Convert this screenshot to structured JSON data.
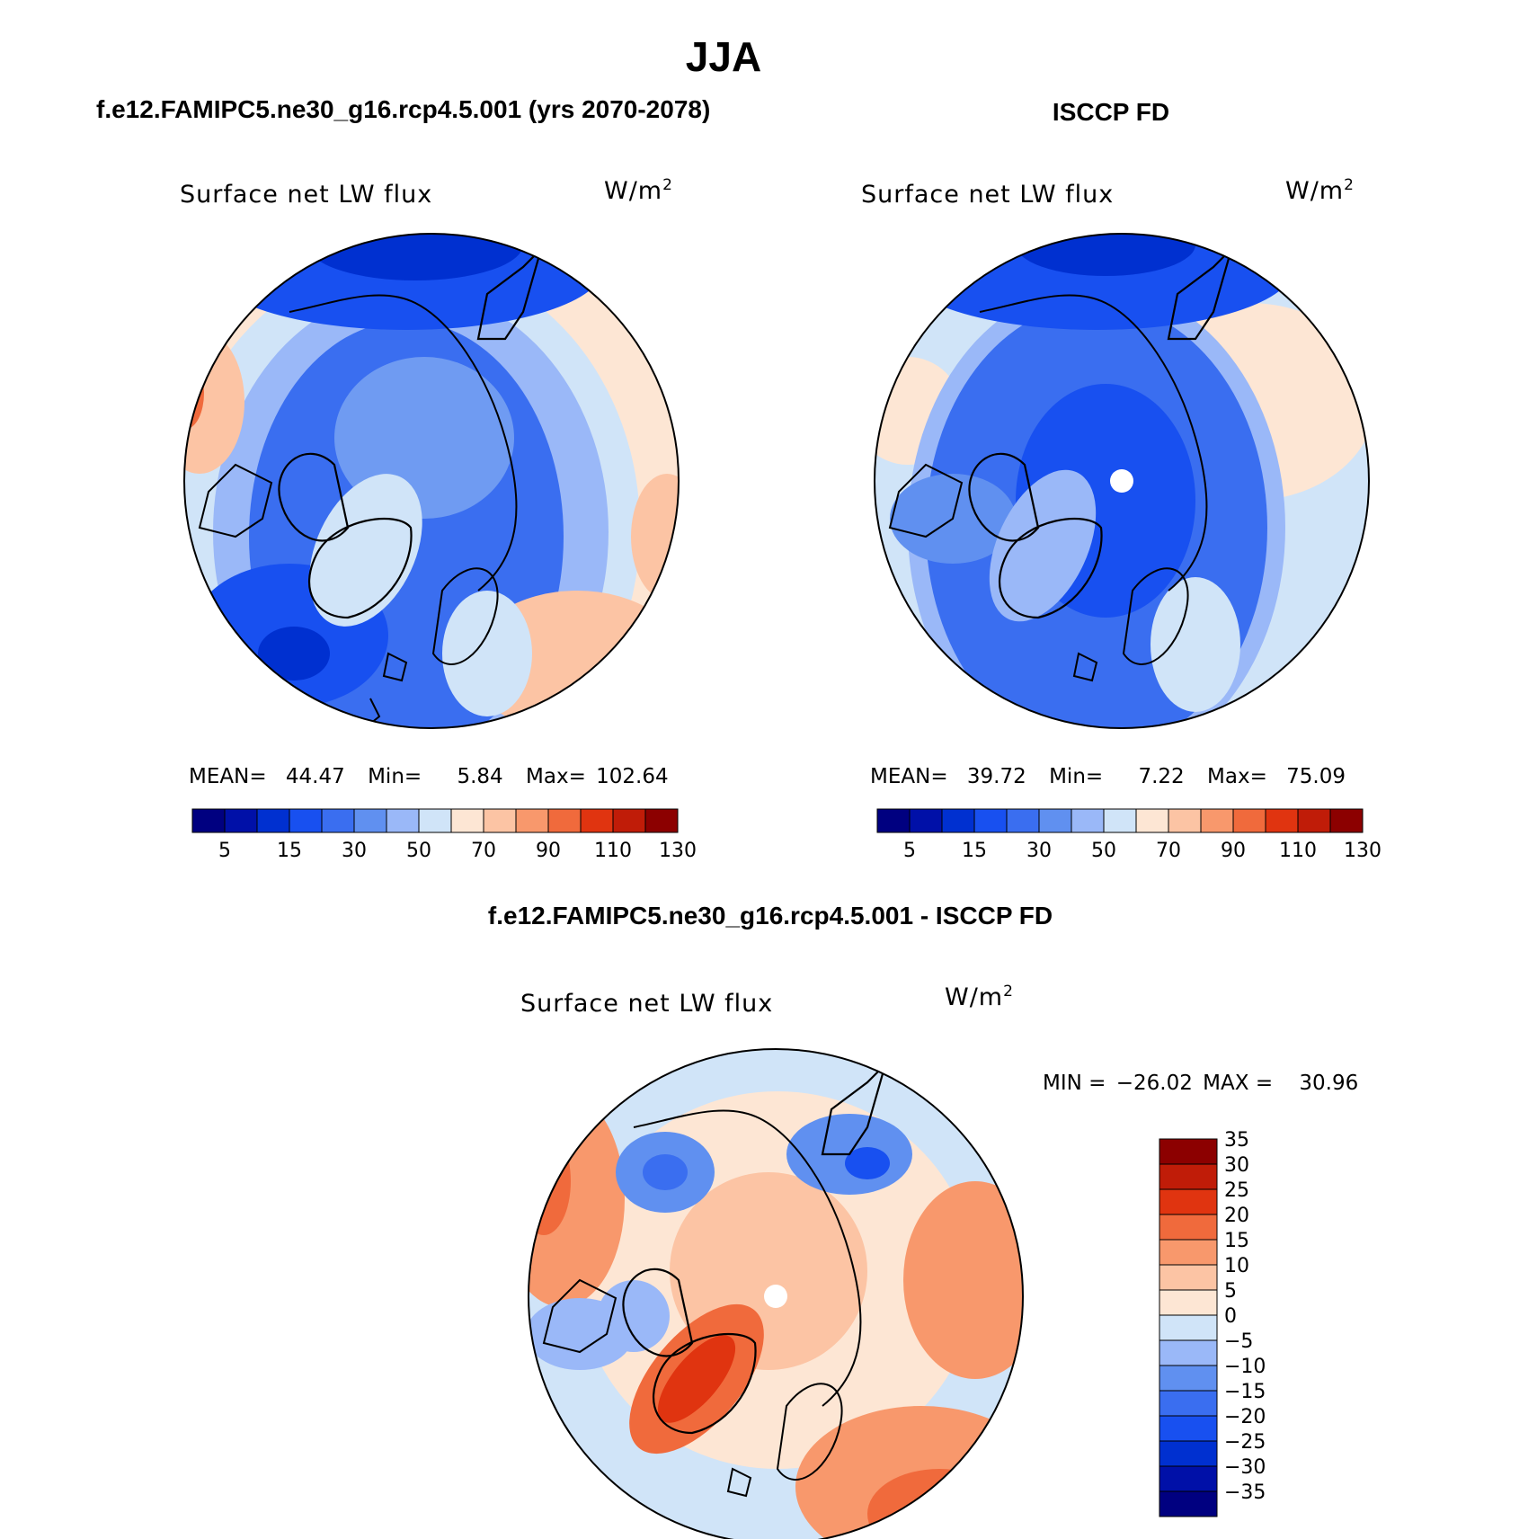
{
  "page_title": "JJA",
  "panels": [
    {
      "heading": "f.e12.FAMIPC5.ne30_g16.rcp4.5.001 (yrs 2070-2078)",
      "variable": "Surface net LW flux",
      "units": "W/m",
      "units_sup": "2",
      "stats": {
        "mean_label": "MEAN=",
        "mean": "44.47",
        "min_label": "Min=",
        "min": "5.84",
        "max_label": "Max=",
        "max": "102.64"
      },
      "pole_hole": false
    },
    {
      "heading": "ISCCP FD",
      "variable": "Surface net LW flux",
      "units": "W/m",
      "units_sup": "2",
      "stats": {
        "mean_label": "MEAN=",
        "mean": "39.72",
        "min_label": "Min=",
        "min": "7.22",
        "max_label": "Max=",
        "max": "75.09"
      },
      "pole_hole": true
    },
    {
      "heading": "f.e12.FAMIPC5.ne30_g16.rcp4.5.001 - ISCCP FD",
      "variable": "Surface net LW flux",
      "units": "W/m",
      "units_sup": "2",
      "stats": {
        "min_label": "MIN =",
        "min": "−26.02",
        "max_label": "MAX =",
        "max": "30.96"
      },
      "pole_hole": true
    }
  ],
  "colorbar_abs": {
    "colors": [
      "#000080",
      "#0010a8",
      "#0030d0",
      "#1850f0",
      "#3a6ef0",
      "#6090f0",
      "#9ab8f8",
      "#d0e4f8",
      "#fde6d4",
      "#fcc4a4",
      "#f8986c",
      "#f06a3c",
      "#e03410",
      "#c01c08",
      "#8c0000"
    ],
    "labels": [
      "5",
      "15",
      "30",
      "50",
      "70",
      "90",
      "110",
      "130"
    ]
  },
  "colorbar_diff": {
    "colors": [
      "#000080",
      "#0010a8",
      "#0030d0",
      "#1850f0",
      "#3a6ef0",
      "#6090f0",
      "#9ab8f8",
      "#d0e4f8",
      "#fde6d4",
      "#fcc4a4",
      "#f8986c",
      "#f06a3c",
      "#e03410",
      "#c01c08",
      "#8c0000"
    ],
    "labels": [
      "−35",
      "−30",
      "−25",
      "−20",
      "−15",
      "−10",
      "−5",
      "0",
      "5",
      "10",
      "15",
      "20",
      "25",
      "30",
      "35"
    ]
  }
}
